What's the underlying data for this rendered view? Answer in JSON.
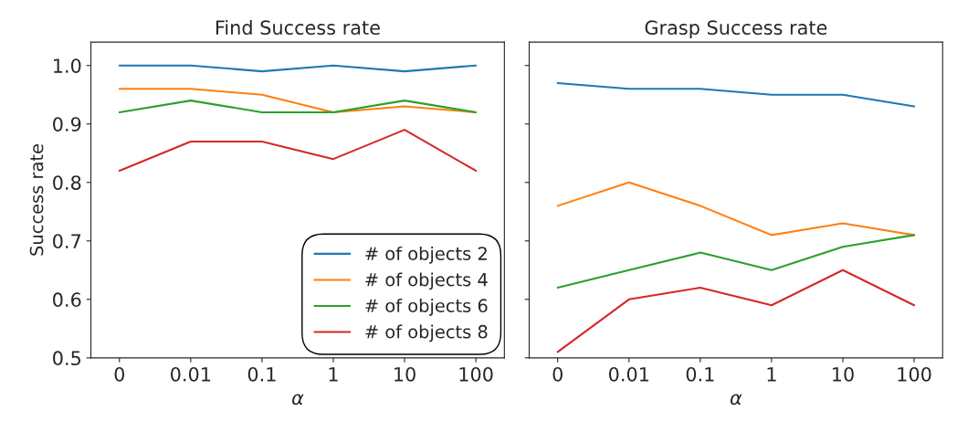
{
  "chart_data": [
    {
      "type": "line",
      "title": "Find Success rate",
      "xlabel": "α",
      "ylabel": "Success rate",
      "categories": [
        "0",
        "0.01",
        "0.1",
        "1",
        "10",
        "100"
      ],
      "ylim": [
        0.5,
        1.04
      ],
      "yticks": [
        {
          "value": 0.5,
          "label": "0.5"
        },
        {
          "value": 0.6,
          "label": "0.6"
        },
        {
          "value": 0.7,
          "label": "0.7"
        },
        {
          "value": 0.8,
          "label": "0.8"
        },
        {
          "value": 0.9,
          "label": "0.9"
        },
        {
          "value": 1.0,
          "label": "1.0"
        }
      ],
      "legend": "bottom right",
      "grid": false,
      "marker": "none",
      "line_style": "solid",
      "series": [
        {
          "name": "# of objects 2",
          "color": "#1f77b4",
          "values": [
            1.0,
            1.0,
            0.99,
            1.0,
            0.99,
            1.0
          ]
        },
        {
          "name": "# of objects 4",
          "color": "#ff7f0e",
          "values": [
            0.96,
            0.96,
            0.95,
            0.92,
            0.93,
            0.92
          ]
        },
        {
          "name": "# of objects 6",
          "color": "#2ca02c",
          "values": [
            0.92,
            0.94,
            0.92,
            0.92,
            0.94,
            0.92
          ]
        },
        {
          "name": "# of objects 8",
          "color": "#d62728",
          "values": [
            0.82,
            0.87,
            0.87,
            0.84,
            0.89,
            0.82
          ]
        }
      ]
    },
    {
      "type": "line",
      "title": "Grasp Success rate",
      "xlabel": "α",
      "categories": [
        "0",
        "0.01",
        "0.1",
        "1",
        "10",
        "100"
      ],
      "ylim": [
        0.5,
        1.04
      ],
      "yticks": [
        {
          "value": 0.5,
          "label": null
        },
        {
          "value": 0.6,
          "label": null
        },
        {
          "value": 0.7,
          "label": null
        },
        {
          "value": 0.8,
          "label": null
        },
        {
          "value": 0.9,
          "label": null
        },
        {
          "value": 1.0,
          "label": null
        }
      ],
      "tick_labels": "x",
      "grid": false,
      "marker": "none",
      "line_style": "solid",
      "series": [
        {
          "color": "#1f77b4",
          "values": [
            0.97,
            0.96,
            0.96,
            0.95,
            0.95,
            0.93
          ]
        },
        {
          "color": "#ff7f0e",
          "values": [
            0.76,
            0.8,
            0.76,
            0.71,
            0.73,
            0.71
          ]
        },
        {
          "color": "#2ca02c",
          "values": [
            0.62,
            0.65,
            0.68,
            0.65,
            0.69,
            0.71
          ]
        },
        {
          "color": "#d62728",
          "values": [
            0.51,
            0.6,
            0.62,
            0.59,
            0.65,
            0.59
          ]
        }
      ]
    }
  ]
}
